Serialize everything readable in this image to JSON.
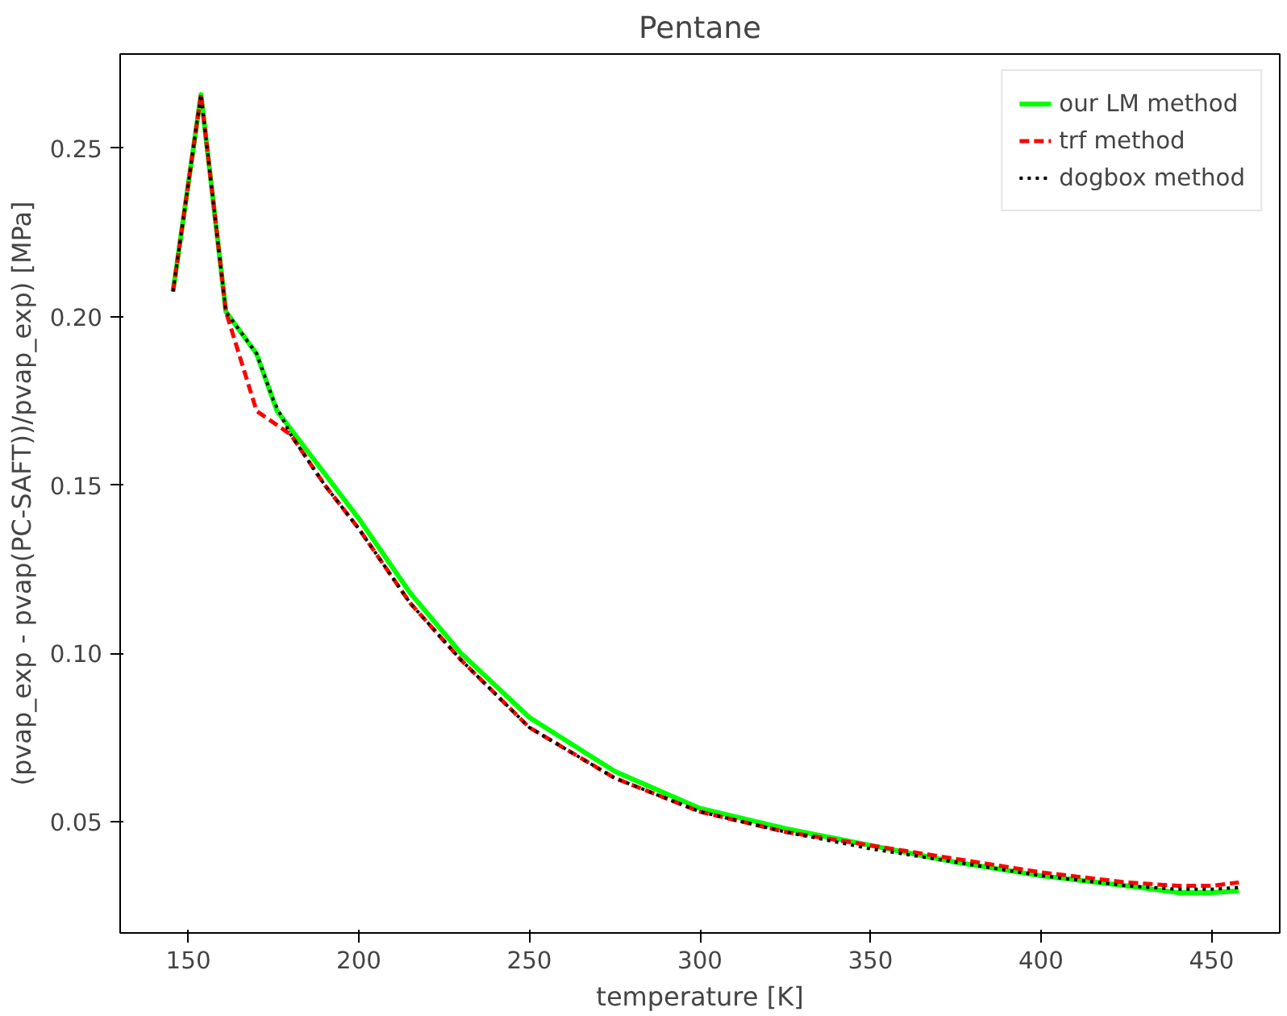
{
  "chart_data": {
    "type": "line",
    "title": "Pentane",
    "xlabel": "temperature [K]",
    "ylabel": "(pvap_exp - pvap(PC-SAFT))/pvap_exp) [MPa]",
    "xlim": [
      130,
      470
    ],
    "ylim": [
      0.017,
      0.278
    ],
    "xticks": [
      150,
      200,
      250,
      300,
      350,
      400,
      450
    ],
    "yticks": [
      0.05,
      {
        "value": 0.1,
        "label": "0.10"
      },
      0.15,
      {
        "value": 0.2,
        "label": "0.20"
      },
      0.25
    ],
    "grid": false,
    "legend": "top right",
    "series": [
      {
        "name": "our LM method",
        "color": "#00ff00",
        "line_style": "solid",
        "x": [
          145.5,
          153.7,
          161,
          170,
          176,
          185,
          200,
          215,
          230,
          250,
          275,
          300,
          325,
          350,
          375,
          400,
          425,
          440,
          450,
          458
        ],
        "values": [
          0.2075,
          0.266,
          0.2015,
          0.189,
          0.172,
          0.16,
          0.14,
          0.118,
          0.1,
          0.081,
          0.065,
          0.054,
          0.048,
          0.043,
          0.038,
          0.034,
          0.031,
          0.029,
          0.029,
          0.0295
        ]
      },
      {
        "name": "trf method",
        "color": "#ff0000",
        "line_style": "dashed",
        "x": [
          145.5,
          153.7,
          161,
          170,
          175,
          180,
          190,
          200,
          215,
          230,
          250,
          275,
          300,
          325,
          350,
          375,
          400,
          425,
          440,
          450,
          458
        ],
        "values": [
          0.2075,
          0.266,
          0.2015,
          0.172,
          0.1685,
          0.165,
          0.15,
          0.137,
          0.115,
          0.098,
          0.078,
          0.063,
          0.053,
          0.047,
          0.043,
          0.039,
          0.035,
          0.032,
          0.031,
          0.031,
          0.032
        ]
      },
      {
        "name": "dogbox method",
        "color": "#000000",
        "line_style": "dotted",
        "x": [
          145.5,
          153.7,
          161,
          170,
          175,
          180,
          190,
          200,
          215,
          230,
          250,
          275,
          300,
          325,
          350,
          375,
          400,
          425,
          440,
          450,
          458
        ],
        "values": [
          0.2075,
          0.266,
          0.2015,
          0.189,
          0.175,
          0.165,
          0.15,
          0.137,
          0.115,
          0.098,
          0.078,
          0.063,
          0.053,
          0.047,
          0.042,
          0.038,
          0.034,
          0.031,
          0.03,
          0.03,
          0.0305
        ]
      }
    ]
  }
}
